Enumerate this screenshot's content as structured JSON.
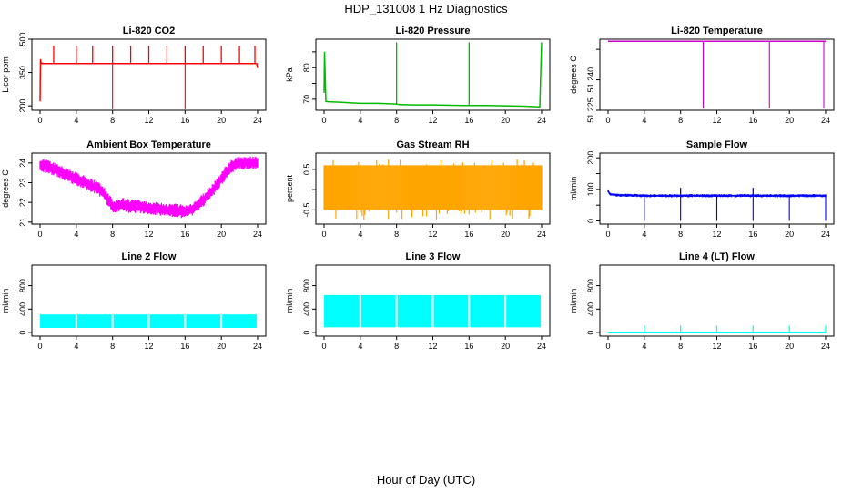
{
  "figure": {
    "title": "HDP_131008  1 Hz Diagnostics",
    "xlabel": "Hour of Day (UTC)"
  },
  "chart_data": [
    {
      "type": "line",
      "title": "Li-820 CO2",
      "ylabel": "Licor ppm",
      "color": "#ff0000",
      "xlim": [
        0,
        24
      ],
      "ylim": [
        180,
        500
      ],
      "xticks": [
        "0",
        "4",
        "8",
        "12",
        "16",
        "20",
        "24"
      ],
      "yticks": [
        200,
        350,
        500
      ],
      "ytick_labels": [
        "200",
        "350",
        "500"
      ],
      "x": [
        0,
        0.05,
        0.1,
        0.15,
        0.2,
        0.3,
        1,
        2,
        3,
        4,
        5,
        6,
        7,
        8,
        9,
        10,
        11,
        12,
        13,
        14,
        15,
        16,
        17,
        18,
        19,
        20,
        21,
        22,
        23,
        23.9,
        24
      ],
      "y": [
        220,
        410,
        390,
        390,
        392,
        390,
        390,
        390,
        390,
        390,
        390,
        390,
        390,
        390,
        390,
        390,
        390,
        390,
        390,
        390,
        390,
        390,
        390,
        390,
        390,
        390,
        390,
        390,
        390,
        390,
        370
      ],
      "spike_x": [
        1.5,
        4,
        5.8,
        8,
        10,
        12,
        14,
        16,
        18,
        20,
        22,
        23.7
      ],
      "spike_top": 470,
      "dip_x": [
        8,
        16
      ],
      "dip_bottom": 185
    },
    {
      "type": "line",
      "title": "Li-820 Pressure",
      "ylabel": "kPa",
      "color": "#00bb00",
      "xlim": [
        0,
        24
      ],
      "ylim": [
        66.5,
        89
      ],
      "xticks": [
        "0",
        "4",
        "8",
        "12",
        "16",
        "20",
        "24"
      ],
      "yticks": [
        70,
        75,
        80,
        85
      ],
      "ytick_labels": [
        "70",
        "",
        "80",
        ""
      ],
      "x": [
        0,
        0.05,
        0.2,
        0.5,
        2,
        4,
        6,
        8,
        8.3,
        10,
        12,
        14,
        16,
        16.3,
        18,
        20,
        22,
        23.8,
        24
      ],
      "y": [
        72,
        85,
        69.3,
        69.2,
        69.0,
        68.7,
        68.7,
        68.5,
        68.3,
        68.2,
        68.2,
        68.1,
        68.0,
        68.0,
        68.0,
        67.9,
        67.8,
        67.6,
        88
      ],
      "spike_x": [
        8,
        16
      ],
      "spike_top": 88
    },
    {
      "type": "line",
      "title": "Li-820 Temperature",
      "ylabel": "degrees C",
      "color": "#cc00cc",
      "xlim": [
        0,
        24
      ],
      "ylim": [
        51.225,
        51.26
      ],
      "xticks": [
        "0",
        "4",
        "8",
        "12",
        "16",
        "20",
        "24"
      ],
      "yticks": [
        51.225,
        51.24,
        51.255
      ],
      "ytick_labels": [
        "51.225",
        "51.240",
        ""
      ],
      "x": [
        0,
        24
      ],
      "y": [
        51.259,
        51.259
      ],
      "dip_x": [
        10.5,
        17.8,
        23.8
      ],
      "dip_bottom": 51.226
    },
    {
      "type": "line",
      "title": "Ambient Box Temperature",
      "ylabel": "degrees C",
      "color": "#ff00ff",
      "xlim": [
        0,
        24
      ],
      "ylim": [
        20.9,
        24.5
      ],
      "xticks": [
        "0",
        "4",
        "8",
        "12",
        "16",
        "20",
        "24"
      ],
      "yticks": [
        21,
        22,
        23,
        24
      ],
      "ytick_labels": [
        "21",
        "22",
        "23",
        "24"
      ],
      "x": [
        0,
        1,
        2,
        3,
        4,
        5,
        6,
        7,
        8,
        9,
        10,
        11,
        12,
        13,
        14,
        15,
        16,
        17,
        18,
        19,
        20,
        21,
        22,
        23,
        24
      ],
      "y": [
        23.9,
        23.8,
        23.6,
        23.4,
        23.2,
        23.0,
        22.8,
        22.5,
        21.8,
        21.9,
        21.8,
        21.8,
        21.7,
        21.7,
        21.6,
        21.6,
        21.5,
        21.7,
        22.1,
        22.6,
        23.2,
        23.8,
        24.0,
        24.0,
        24.0
      ],
      "band": 0.35
    },
    {
      "type": "area",
      "title": "Gas Stream RH",
      "ylabel": "percent",
      "color": "#ffa500",
      "xlim": [
        0,
        24
      ],
      "ylim": [
        -0.85,
        0.9
      ],
      "xticks": [
        "0",
        "4",
        "8",
        "12",
        "16",
        "20",
        "24"
      ],
      "yticks": [
        -0.5,
        0,
        0.5
      ],
      "ytick_labels": [
        "-0.5",
        "",
        "0.5"
      ],
      "upper": 0.6,
      "lower": -0.5,
      "spike_upper": 0.75,
      "spike_lower": -0.75
    },
    {
      "type": "line",
      "title": "Sample Flow",
      "ylabel": "ml/min",
      "color": "#0000ff",
      "xlim": [
        0,
        24
      ],
      "ylim": [
        -10,
        215
      ],
      "xticks": [
        "0",
        "4",
        "8",
        "12",
        "16",
        "20",
        "24"
      ],
      "yticks": [
        0,
        50,
        100,
        150,
        200
      ],
      "ytick_labels": [
        "0",
        "",
        "100",
        "",
        "200"
      ],
      "x": [
        0,
        0.2,
        1,
        4,
        8,
        12,
        16,
        20,
        23.9,
        24
      ],
      "y": [
        95,
        85,
        82,
        80,
        80,
        80,
        80,
        80,
        80,
        80
      ],
      "band": 5,
      "dip_x": [
        4,
        8,
        12,
        16,
        20,
        24
      ],
      "dip_bottom": 0,
      "spike_x": [
        8,
        16
      ],
      "spike_top": 105
    },
    {
      "type": "area",
      "title": "Line 2 Flow",
      "ylabel": "ml/min",
      "color": "#00ffff",
      "xlim": [
        0,
        24
      ],
      "ylim": [
        -60,
        1150
      ],
      "xticks": [
        "0",
        "4",
        "8",
        "12",
        "16",
        "20",
        "24"
      ],
      "yticks": [
        0,
        400,
        800
      ],
      "ytick_labels": [
        "0",
        "400",
        "800"
      ],
      "upper": 310,
      "lower": 80,
      "gap_x": [
        4,
        8,
        12,
        16,
        20
      ]
    },
    {
      "type": "area",
      "title": "Line 3 Flow",
      "ylabel": "ml/min",
      "color": "#00ffff",
      "xlim": [
        0,
        24
      ],
      "ylim": [
        -60,
        1150
      ],
      "xticks": [
        "0",
        "4",
        "8",
        "12",
        "16",
        "20",
        "24"
      ],
      "yticks": [
        0,
        400,
        800
      ],
      "ytick_labels": [
        "0",
        "400",
        "800"
      ],
      "upper": 640,
      "lower": 90,
      "gap_x": [
        4,
        8,
        12,
        16,
        20
      ]
    },
    {
      "type": "line",
      "title": "Line 4 (LT) Flow",
      "ylabel": "ml/min",
      "color": "#00ffff",
      "xlim": [
        0,
        24
      ],
      "ylim": [
        -60,
        1150
      ],
      "xticks": [
        "0",
        "4",
        "8",
        "12",
        "16",
        "20",
        "24"
      ],
      "yticks": [
        0,
        400,
        800
      ],
      "ytick_labels": [
        "0",
        "400",
        "800"
      ],
      "x": [
        0,
        24
      ],
      "y": [
        5,
        5
      ],
      "spike_x": [
        4,
        8,
        12,
        16,
        20,
        24
      ],
      "spike_top": 120
    }
  ]
}
